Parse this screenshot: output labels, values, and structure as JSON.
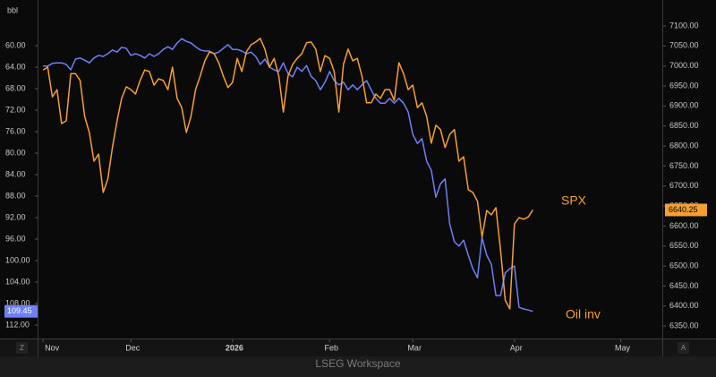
{
  "chart_data": {
    "type": "line",
    "y_label": "bbl",
    "footer": "LSEG Workspace",
    "axis_buttons": [
      "Z",
      "A"
    ],
    "grid": false,
    "x": [
      0,
      1,
      2,
      3,
      4,
      5,
      6,
      7,
      8,
      9,
      10,
      11,
      12,
      13,
      14,
      15,
      16,
      17,
      18,
      19,
      20,
      21,
      22,
      23,
      24,
      25,
      26,
      27,
      28,
      29,
      30,
      31,
      32,
      33,
      34,
      35,
      36,
      37,
      38,
      39,
      40,
      41,
      42,
      43,
      44,
      45,
      46,
      47,
      48,
      49,
      50,
      51,
      52,
      53,
      54,
      55,
      56,
      57,
      58,
      59,
      60,
      61,
      62,
      63,
      64,
      65,
      66,
      67,
      68,
      69,
      70,
      71,
      72,
      73,
      74,
      75,
      76,
      77,
      78,
      79,
      80,
      81,
      82,
      83,
      84,
      85,
      86,
      87,
      88,
      89,
      90,
      91,
      92,
      93,
      94,
      95,
      96,
      97,
      98,
      99,
      100,
      101,
      102,
      103,
      104,
      105,
      106
    ],
    "xlim": [
      -1,
      134
    ],
    "xticks": [
      {
        "value": 0,
        "label": "Nov"
      },
      {
        "value": 19,
        "label": "Dec"
      },
      {
        "value": 41,
        "label": "2026"
      },
      {
        "value": 62,
        "label": "Feb"
      },
      {
        "value": 80,
        "label": "Mar"
      },
      {
        "value": 102,
        "label": "Apr"
      },
      {
        "value": 125,
        "label": "May"
      }
    ],
    "ylim": [
      114.5,
      52.83
    ],
    "yticks": [
      {
        "value": 60,
        "label": "60.00"
      },
      {
        "value": 64,
        "label": "64.00"
      },
      {
        "value": 68,
        "label": "68.00"
      },
      {
        "value": 72,
        "label": "72.00"
      },
      {
        "value": 76,
        "label": "76.00"
      },
      {
        "value": 80,
        "label": "80.00"
      },
      {
        "value": 84,
        "label": "84.00"
      },
      {
        "value": 88,
        "label": "88.00"
      },
      {
        "value": 92,
        "label": "92.00"
      },
      {
        "value": 96,
        "label": "96.00"
      },
      {
        "value": 100,
        "label": "100.00"
      },
      {
        "value": 104,
        "label": "104.00"
      },
      {
        "value": 108,
        "label": "108.00"
      },
      {
        "value": 112,
        "label": "112.00"
      }
    ],
    "y2lim": [
      6319,
      7147
    ],
    "y2ticks": [
      {
        "value": 6350,
        "label": "6350.00"
      },
      {
        "value": 6400,
        "label": "6400.00"
      },
      {
        "value": 6450,
        "label": "6450.00"
      },
      {
        "value": 6500,
        "label": "6500.00"
      },
      {
        "value": 6550,
        "label": "6550.00"
      },
      {
        "value": 6600,
        "label": "6600.00"
      },
      {
        "value": 6650,
        "label": "6650.00"
      },
      {
        "value": 6700,
        "label": "6700.00"
      },
      {
        "value": 6750,
        "label": "6750.00"
      },
      {
        "value": 6800,
        "label": "6800.00"
      },
      {
        "value": 6850,
        "label": "6850.00"
      },
      {
        "value": 6900,
        "label": "6900.00"
      },
      {
        "value": 6950,
        "label": "6950.00"
      },
      {
        "value": 7000,
        "label": "7000.00"
      },
      {
        "value": 7050,
        "label": "7050.00"
      },
      {
        "value": 7100,
        "label": "7100.00"
      }
    ],
    "series": [
      {
        "name": "Oil inv",
        "color": "#6f7ff5",
        "axis": "y",
        "values": [
          63.8,
          63.8,
          63.3,
          63.2,
          63.2,
          63.5,
          64.5,
          62.5,
          62.3,
          62.7,
          63.2,
          62.3,
          61.8,
          62.0,
          61.5,
          60.8,
          61.2,
          60.3,
          60.5,
          61.8,
          61.5,
          61.8,
          62.3,
          61.5,
          62.0,
          61.5,
          60.7,
          60.2,
          60.7,
          59.5,
          58.7,
          59.2,
          59.5,
          60.2,
          60.8,
          61.0,
          61.0,
          61.5,
          61.2,
          60.5,
          59.8,
          60.7,
          60.7,
          61.0,
          61.5,
          61.2,
          62.0,
          63.5,
          62.5,
          64.0,
          64.5,
          64.8,
          63.2,
          65.2,
          65.8,
          64.0,
          64.8,
          63.7,
          65.7,
          66.5,
          68.2,
          66.8,
          64.8,
          66.5,
          67.3,
          66.8,
          68.2,
          67.3,
          68.2,
          67.3,
          66.5,
          68.2,
          69.8,
          70.7,
          70.7,
          69.8,
          70.7,
          69.8,
          70.7,
          72.3,
          76.5,
          78.2,
          77.3,
          81.5,
          83.2,
          88.2,
          85.7,
          84.8,
          93.2,
          96.5,
          97.3,
          96.2,
          99.0,
          101.5,
          103.2,
          95.7,
          99.0,
          100.7,
          106.5,
          106.5,
          102.3,
          101.5,
          101.0,
          108.7,
          109.0,
          109.2,
          109.45
        ]
      },
      {
        "name": "SPX",
        "color": "#f5a030",
        "axis": "y2",
        "values": [
          6990,
          6997,
          6923,
          6941,
          6856,
          6863,
          6981,
          6981,
          6964,
          6874,
          6834,
          6762,
          6780,
          6684,
          6717,
          6796,
          6863,
          6919,
          6948,
          6941,
          6930,
          6964,
          6990,
          6986,
          6952,
          6968,
          6964,
          6941,
          6997,
          6919,
          6896,
          6834,
          6874,
          6941,
          6975,
          7013,
          7035,
          7031,
          7008,
          6975,
          6946,
          6959,
          7019,
          6986,
          7035,
          7053,
          7060,
          7069,
          7042,
          6997,
          7019,
          6975,
          6885,
          6975,
          7004,
          7019,
          7031,
          7058,
          7060,
          7042,
          6986,
          7026,
          7019,
          6986,
          6885,
          7004,
          7042,
          7013,
          7019,
          6975,
          6908,
          6908,
          6930,
          6919,
          6941,
          6941,
          6914,
          7008,
          6981,
          6941,
          6952,
          6896,
          6908,
          6874,
          6807,
          6852,
          6841,
          6796,
          6829,
          6841,
          6762,
          6773,
          6691,
          6684,
          6662,
          6572,
          6639,
          6628,
          6646,
          6539,
          6415,
          6393,
          6605,
          6621,
          6617,
          6623,
          6640.25
        ]
      }
    ]
  }
}
